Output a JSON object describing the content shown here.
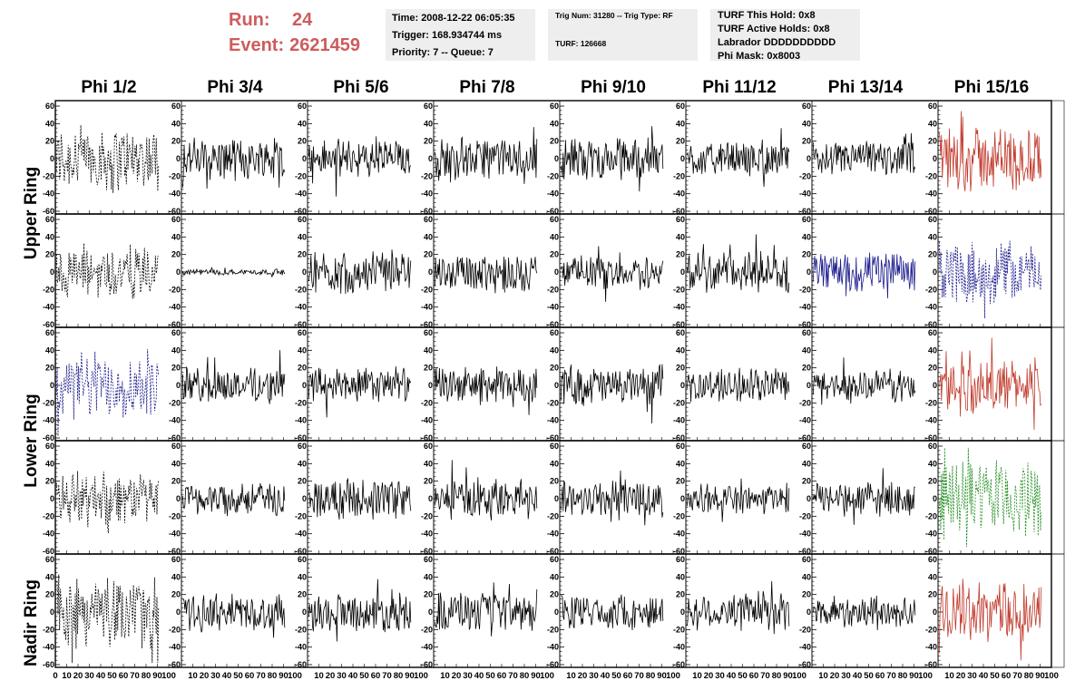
{
  "header": {
    "run_label": "Run:",
    "run_value": "24",
    "event_label": "Event:",
    "event_value": "2621459"
  },
  "info1": {
    "time": "Time: 2008-12-22 06:05:35",
    "trigger": "Trigger: 168.934744 ms",
    "priority": "Priority: 7 -- Queue: 7"
  },
  "info2": {
    "trig": "Trig Num: 31280 -- Trig Type: RF",
    "turf": "TURF: 126668"
  },
  "info3": {
    "hold": "TURF This Hold: 0x8",
    "active": "TURF Active Holds: 0x8",
    "labrador": "Labrador DDDDDDDDDD",
    "phimask": "Phi Mask: 0x8003"
  },
  "columns": [
    "Phi 1/2",
    "Phi 3/4",
    "Phi 5/6",
    "Phi 7/8",
    "Phi 9/10",
    "Phi 11/12",
    "Phi 13/14",
    "Phi 15/16"
  ],
  "rows": [
    "Upper Ring",
    "Lower Ring",
    "Nadir Ring"
  ],
  "colors": {
    "black": "#000000",
    "red": "#c0392b",
    "blue": "#1a1a8c",
    "green": "#1e8c1e",
    "accent": "#cd5c5c"
  },
  "chart_data": {
    "type": "line",
    "panel_grid": {
      "rows": 5,
      "cols": 8
    },
    "xlim": [
      0,
      100
    ],
    "ylim": [
      -60,
      60
    ],
    "x_ticks": [
      0,
      10,
      20,
      30,
      40,
      50,
      60,
      70,
      80,
      90,
      100
    ],
    "y_ticks": [
      -60,
      -40,
      -20,
      0,
      20,
      40,
      60
    ],
    "grid": false,
    "panels": [
      {
        "row": 0,
        "col": 0,
        "color": "black",
        "style": "dashed",
        "amp": 22
      },
      {
        "row": 0,
        "col": 1,
        "color": "black",
        "style": "solid",
        "amp": 14
      },
      {
        "row": 0,
        "col": 2,
        "color": "black",
        "style": "solid",
        "amp": 13
      },
      {
        "row": 0,
        "col": 3,
        "color": "black",
        "style": "solid",
        "amp": 14
      },
      {
        "row": 0,
        "col": 4,
        "color": "black",
        "style": "solid",
        "amp": 14
      },
      {
        "row": 0,
        "col": 5,
        "color": "black",
        "style": "solid",
        "amp": 11
      },
      {
        "row": 0,
        "col": 6,
        "color": "black",
        "style": "solid",
        "amp": 11
      },
      {
        "row": 0,
        "col": 7,
        "color": "red",
        "style": "solid",
        "amp": 22
      },
      {
        "row": 1,
        "col": 0,
        "color": "black",
        "style": "dashed",
        "amp": 18
      },
      {
        "row": 1,
        "col": 1,
        "color": "black",
        "style": "solid",
        "amp": 2
      },
      {
        "row": 1,
        "col": 2,
        "color": "black",
        "style": "solid",
        "amp": 14
      },
      {
        "row": 1,
        "col": 3,
        "color": "black",
        "style": "solid",
        "amp": 13
      },
      {
        "row": 1,
        "col": 4,
        "color": "black",
        "style": "solid",
        "amp": 11
      },
      {
        "row": 1,
        "col": 5,
        "color": "black",
        "style": "solid",
        "amp": 14
      },
      {
        "row": 1,
        "col": 6,
        "color": "blue",
        "style": "solid",
        "amp": 14
      },
      {
        "row": 1,
        "col": 7,
        "color": "blue",
        "style": "dashed",
        "amp": 20
      },
      {
        "row": 2,
        "col": 0,
        "color": "blue",
        "style": "dashed",
        "amp": 22
      },
      {
        "row": 2,
        "col": 1,
        "color": "black",
        "style": "solid",
        "amp": 12
      },
      {
        "row": 2,
        "col": 2,
        "color": "black",
        "style": "solid",
        "amp": 12
      },
      {
        "row": 2,
        "col": 3,
        "color": "black",
        "style": "solid",
        "amp": 12
      },
      {
        "row": 2,
        "col": 4,
        "color": "black",
        "style": "solid",
        "amp": 13
      },
      {
        "row": 2,
        "col": 5,
        "color": "black",
        "style": "solid",
        "amp": 11
      },
      {
        "row": 2,
        "col": 6,
        "color": "black",
        "style": "solid",
        "amp": 11
      },
      {
        "row": 2,
        "col": 7,
        "color": "red",
        "style": "solid",
        "amp": 18
      },
      {
        "row": 3,
        "col": 0,
        "color": "black",
        "style": "dashed",
        "amp": 18
      },
      {
        "row": 3,
        "col": 1,
        "color": "black",
        "style": "solid",
        "amp": 11
      },
      {
        "row": 3,
        "col": 2,
        "color": "black",
        "style": "solid",
        "amp": 14
      },
      {
        "row": 3,
        "col": 3,
        "color": "black",
        "style": "solid",
        "amp": 13
      },
      {
        "row": 3,
        "col": 4,
        "color": "black",
        "style": "solid",
        "amp": 12
      },
      {
        "row": 3,
        "col": 5,
        "color": "black",
        "style": "solid",
        "amp": 10
      },
      {
        "row": 3,
        "col": 6,
        "color": "black",
        "style": "solid",
        "amp": 11
      },
      {
        "row": 3,
        "col": 7,
        "color": "green",
        "style": "dashed",
        "amp": 26
      },
      {
        "row": 4,
        "col": 0,
        "color": "black",
        "style": "dashed",
        "amp": 24
      },
      {
        "row": 4,
        "col": 1,
        "color": "black",
        "style": "solid",
        "amp": 12
      },
      {
        "row": 4,
        "col": 2,
        "color": "black",
        "style": "solid",
        "amp": 13
      },
      {
        "row": 4,
        "col": 3,
        "color": "black",
        "style": "solid",
        "amp": 13
      },
      {
        "row": 4,
        "col": 4,
        "color": "black",
        "style": "solid",
        "amp": 12
      },
      {
        "row": 4,
        "col": 5,
        "color": "black",
        "style": "solid",
        "amp": 13
      },
      {
        "row": 4,
        "col": 6,
        "color": "black",
        "style": "solid",
        "amp": 10
      },
      {
        "row": 4,
        "col": 7,
        "color": "red",
        "style": "solid",
        "amp": 20
      }
    ]
  }
}
